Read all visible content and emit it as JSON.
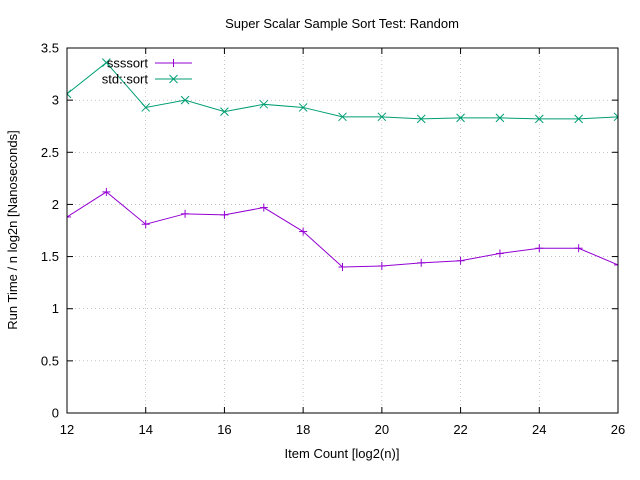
{
  "chart_data": {
    "type": "line",
    "title": "Super Scalar Sample Sort Test: Random",
    "xlabel": "Item Count [log2(n)]",
    "ylabel": "Run Time / n log2n [Nanoseconds]",
    "xlim": [
      12,
      26
    ],
    "ylim": [
      0,
      3.5
    ],
    "xticks": [
      12,
      14,
      16,
      18,
      20,
      22,
      24,
      26
    ],
    "yticks": [
      0,
      0.5,
      1,
      1.5,
      2,
      2.5,
      3,
      3.5
    ],
    "ytick_labels": [
      "0",
      "0.5",
      "1",
      "1.5",
      "2",
      "2.5",
      "3",
      "3.5"
    ],
    "grid": true,
    "legend_position": "top-left",
    "x": [
      12,
      13,
      14,
      15,
      16,
      17,
      18,
      19,
      20,
      21,
      22,
      23,
      24,
      25,
      26
    ],
    "series": [
      {
        "name": "ssssort",
        "color": "#9400d3",
        "marker": "plus",
        "values": [
          1.88,
          2.12,
          1.81,
          1.91,
          1.9,
          1.97,
          1.74,
          1.4,
          1.41,
          1.44,
          1.46,
          1.53,
          1.58,
          1.58,
          1.42
        ]
      },
      {
        "name": "std::sort",
        "color": "#009e73",
        "marker": "cross",
        "values": [
          3.06,
          3.36,
          2.93,
          3.0,
          2.89,
          2.96,
          2.93,
          2.84,
          2.84,
          2.82,
          2.83,
          2.83,
          2.82,
          2.82,
          2.84
        ]
      }
    ]
  }
}
